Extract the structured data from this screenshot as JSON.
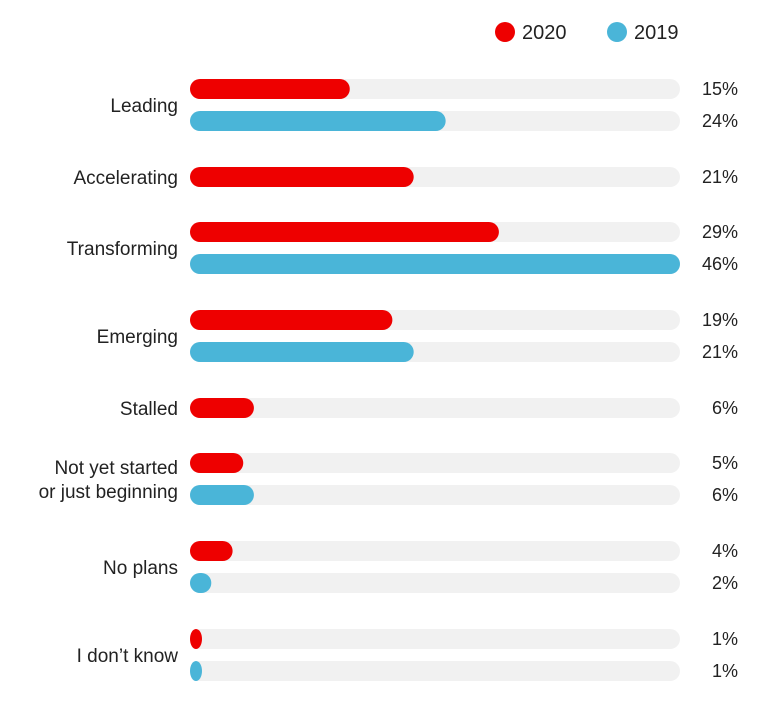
{
  "chart_data": {
    "type": "bar",
    "orientation": "horizontal",
    "title": "",
    "xlabel": "",
    "ylabel": "",
    "xlim": [
      0,
      46
    ],
    "legend_position": "top-right",
    "grid": false,
    "categories": [
      [
        "Leading"
      ],
      [
        "Accelerating"
      ],
      [
        "Transforming"
      ],
      [
        "Emerging"
      ],
      [
        "Stalled"
      ],
      [
        "Not yet started",
        "or just beginning"
      ],
      [
        "No plans"
      ],
      [
        "I don’t know"
      ]
    ],
    "series": [
      {
        "name": "2020",
        "color": "#ee0000",
        "values": [
          15,
          21,
          29,
          19,
          6,
          5,
          4,
          1
        ],
        "labels": [
          "15%",
          "21%",
          "29%",
          "19%",
          "6%",
          "5%",
          "4%",
          "1%"
        ]
      },
      {
        "name": "2019",
        "color": "#4ab5d8",
        "values": [
          24,
          null,
          46,
          21,
          null,
          6,
          2,
          1
        ],
        "labels": [
          "24%",
          null,
          "46%",
          "21%",
          null,
          "6%",
          "2%",
          "1%"
        ]
      }
    ],
    "track_color": "#f1f1f1"
  }
}
